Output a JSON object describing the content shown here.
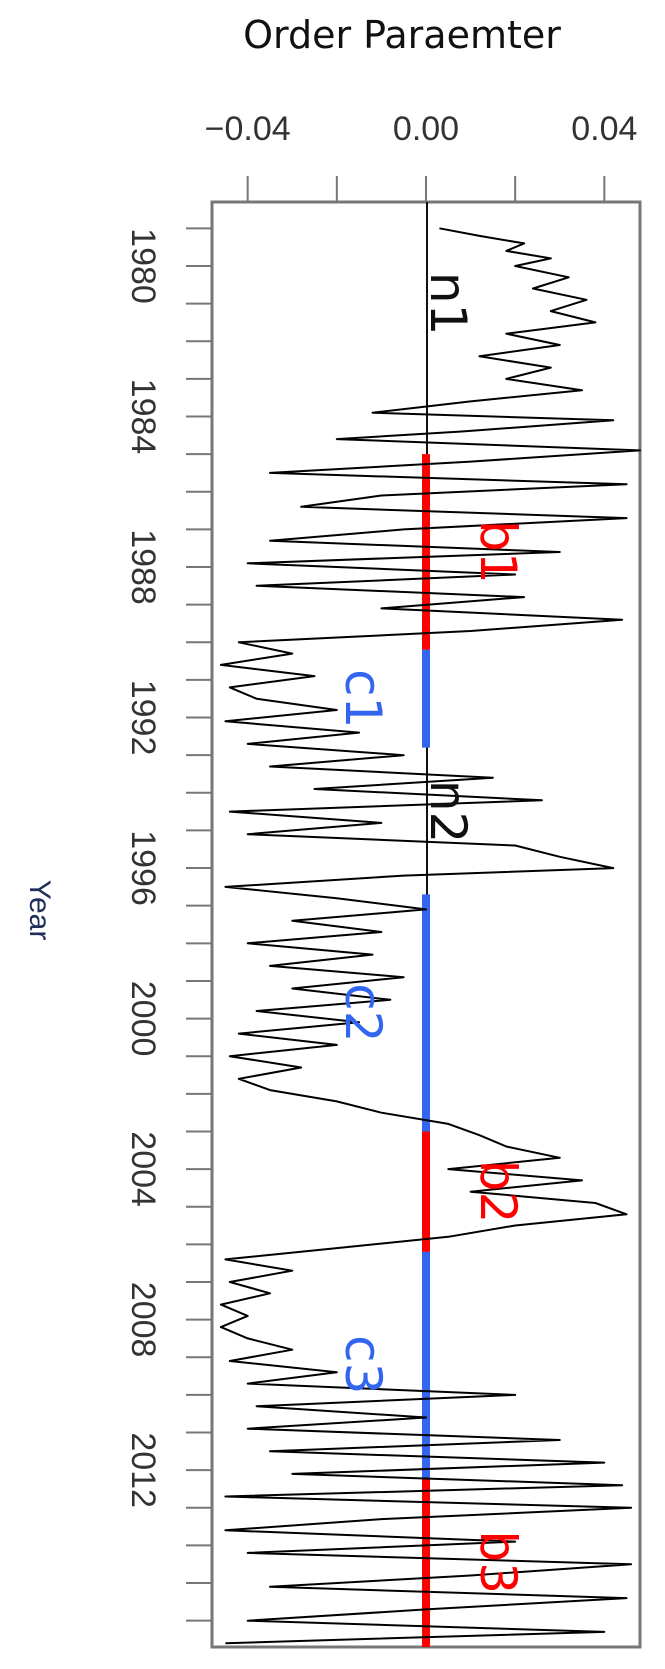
{
  "chart_data": {
    "type": "line",
    "orientation": "vertical-time-axis",
    "title": "Order Paraemter",
    "xlabel": "Order Paraemter",
    "ylabel": "Year",
    "xlim": [
      -0.048,
      0.048
    ],
    "ylim": [
      1978.3,
      2016.7
    ],
    "x_ticks": [
      -0.04,
      -0.02,
      0.0,
      0.02,
      0.04
    ],
    "x_tick_labels": [
      "−0.04",
      "",
      "0.00",
      "",
      "0.04"
    ],
    "y_ticks": [
      1979,
      1980,
      1981,
      1982,
      1983,
      1984,
      1985,
      1986,
      1987,
      1988,
      1989,
      1990,
      1991,
      1992,
      1993,
      1994,
      1995,
      1996,
      1997,
      1998,
      1999,
      2000,
      2001,
      2002,
      2003,
      2004,
      2005,
      2006,
      2007,
      2008,
      2009,
      2010,
      2011,
      2012,
      2013,
      2014,
      2015,
      2016
    ],
    "y_tick_labels": [
      "",
      "1980",
      "",
      "",
      "",
      "1984",
      "",
      "",
      "",
      "1988",
      "",
      "",
      "",
      "1992",
      "",
      "",
      "",
      "1996",
      "",
      "",
      "",
      "2000",
      "",
      "",
      "",
      "2004",
      "",
      "",
      "",
      "2008",
      "",
      "",
      "",
      "2012",
      "",
      "",
      "",
      ""
    ],
    "zero_line_color": "#111111",
    "series": [
      {
        "color": "#000000",
        "points": [
          [
            1979.0,
            0.003
          ],
          [
            1979.2,
            0.012
          ],
          [
            1979.4,
            0.022
          ],
          [
            1979.6,
            0.018
          ],
          [
            1979.8,
            0.028
          ],
          [
            1980.0,
            0.02
          ],
          [
            1980.3,
            0.032
          ],
          [
            1980.6,
            0.024
          ],
          [
            1980.9,
            0.036
          ],
          [
            1981.2,
            0.028
          ],
          [
            1981.5,
            0.038
          ],
          [
            1981.8,
            0.018
          ],
          [
            1982.1,
            0.03
          ],
          [
            1982.4,
            0.012
          ],
          [
            1982.7,
            0.028
          ],
          [
            1983.0,
            0.018
          ],
          [
            1983.3,
            0.035
          ],
          [
            1983.6,
            0.01
          ],
          [
            1983.9,
            -0.012
          ],
          [
            1984.1,
            0.042
          ],
          [
            1984.4,
            0.008
          ],
          [
            1984.6,
            -0.02
          ],
          [
            1984.9,
            0.048
          ],
          [
            1985.2,
            0.01
          ],
          [
            1985.5,
            -0.035
          ],
          [
            1985.8,
            0.045
          ],
          [
            1986.1,
            -0.01
          ],
          [
            1986.4,
            -0.028
          ],
          [
            1986.7,
            0.045
          ],
          [
            1987.0,
            -0.005
          ],
          [
            1987.3,
            -0.035
          ],
          [
            1987.6,
            0.03
          ],
          [
            1987.9,
            -0.04
          ],
          [
            1988.2,
            0.02
          ],
          [
            1988.5,
            -0.038
          ],
          [
            1988.8,
            0.022
          ],
          [
            1989.1,
            -0.01
          ],
          [
            1989.4,
            0.044
          ],
          [
            1989.7,
            0.01
          ],
          [
            1990.0,
            -0.042
          ],
          [
            1990.3,
            -0.03
          ],
          [
            1990.6,
            -0.046
          ],
          [
            1990.9,
            -0.025
          ],
          [
            1991.2,
            -0.044
          ],
          [
            1991.5,
            -0.038
          ],
          [
            1991.8,
            -0.02
          ],
          [
            1992.1,
            -0.045
          ],
          [
            1992.4,
            -0.015
          ],
          [
            1992.7,
            -0.04
          ],
          [
            1993.0,
            -0.005
          ],
          [
            1993.3,
            -0.035
          ],
          [
            1993.6,
            0.015
          ],
          [
            1993.9,
            -0.025
          ],
          [
            1994.2,
            0.026
          ],
          [
            1994.5,
            -0.044
          ],
          [
            1994.8,
            -0.01
          ],
          [
            1995.1,
            -0.04
          ],
          [
            1995.4,
            0.02
          ],
          [
            1995.7,
            0.03
          ],
          [
            1996.0,
            0.042
          ],
          [
            1996.2,
            -0.005
          ],
          [
            1996.5,
            -0.045
          ],
          [
            1996.8,
            -0.02
          ],
          [
            1997.1,
            0.0
          ],
          [
            1997.4,
            -0.03
          ],
          [
            1997.7,
            -0.01
          ],
          [
            1998.0,
            -0.04
          ],
          [
            1998.3,
            -0.012
          ],
          [
            1998.6,
            -0.035
          ],
          [
            1998.9,
            -0.005
          ],
          [
            1999.2,
            -0.03
          ],
          [
            1999.5,
            -0.008
          ],
          [
            1999.8,
            -0.038
          ],
          [
            2000.1,
            -0.015
          ],
          [
            2000.4,
            -0.042
          ],
          [
            2000.7,
            -0.02
          ],
          [
            2001.0,
            -0.044
          ],
          [
            2001.3,
            -0.028
          ],
          [
            2001.6,
            -0.042
          ],
          [
            2001.9,
            -0.035
          ],
          [
            2002.2,
            -0.02
          ],
          [
            2002.5,
            -0.01
          ],
          [
            2002.8,
            0.005
          ],
          [
            2003.1,
            0.012
          ],
          [
            2003.4,
            0.018
          ],
          [
            2003.7,
            0.03
          ],
          [
            2004.0,
            0.005
          ],
          [
            2004.3,
            0.035
          ],
          [
            2004.6,
            0.01
          ],
          [
            2004.9,
            0.038
          ],
          [
            2005.2,
            0.045
          ],
          [
            2005.5,
            0.02
          ],
          [
            2005.8,
            0.005
          ],
          [
            2006.1,
            -0.02
          ],
          [
            2006.4,
            -0.045
          ],
          [
            2006.7,
            -0.03
          ],
          [
            2007.0,
            -0.044
          ],
          [
            2007.3,
            -0.035
          ],
          [
            2007.6,
            -0.046
          ],
          [
            2007.9,
            -0.04
          ],
          [
            2008.2,
            -0.046
          ],
          [
            2008.5,
            -0.04
          ],
          [
            2008.8,
            -0.03
          ],
          [
            2009.1,
            -0.044
          ],
          [
            2009.4,
            -0.02
          ],
          [
            2009.7,
            -0.04
          ],
          [
            2010.0,
            0.02
          ],
          [
            2010.3,
            -0.038
          ],
          [
            2010.6,
            0.0
          ],
          [
            2010.9,
            -0.04
          ],
          [
            2011.2,
            0.03
          ],
          [
            2011.5,
            -0.035
          ],
          [
            2011.8,
            0.04
          ],
          [
            2012.1,
            -0.03
          ],
          [
            2012.4,
            0.044
          ],
          [
            2012.7,
            -0.045
          ],
          [
            2013.0,
            0.046
          ],
          [
            2013.3,
            -0.01
          ],
          [
            2013.6,
            -0.045
          ],
          [
            2013.9,
            0.02
          ],
          [
            2014.2,
            -0.04
          ],
          [
            2014.5,
            0.046
          ],
          [
            2014.8,
            0.01
          ],
          [
            2015.1,
            -0.035
          ],
          [
            2015.4,
            0.045
          ],
          [
            2015.7,
            0.0
          ],
          [
            2016.0,
            -0.04
          ],
          [
            2016.3,
            0.04
          ],
          [
            2016.6,
            -0.045
          ]
        ]
      }
    ],
    "segments": [
      {
        "label": "b1",
        "color": "#ff0000",
        "start": 1985.0,
        "end": 1990.2,
        "side": "right"
      },
      {
        "label": "c1",
        "color": "#3366ee",
        "start": 1990.2,
        "end": 1992.8,
        "side": "left"
      },
      {
        "label": "c2",
        "color": "#3366ee",
        "start": 1996.7,
        "end": 2003.0,
        "side": "left"
      },
      {
        "label": "b2",
        "color": "#ff0000",
        "start": 2003.0,
        "end": 2006.2,
        "side": "right"
      },
      {
        "label": "c3",
        "color": "#3366ee",
        "start": 2006.2,
        "end": 2012.2,
        "side": "left"
      },
      {
        "label": "b3",
        "color": "#ff0000",
        "start": 2012.2,
        "end": 2016.7,
        "side": "right"
      }
    ],
    "annotations": [
      {
        "text": "n1",
        "year": 1981.0
      },
      {
        "text": "n2",
        "year": 1994.5
      }
    ]
  }
}
